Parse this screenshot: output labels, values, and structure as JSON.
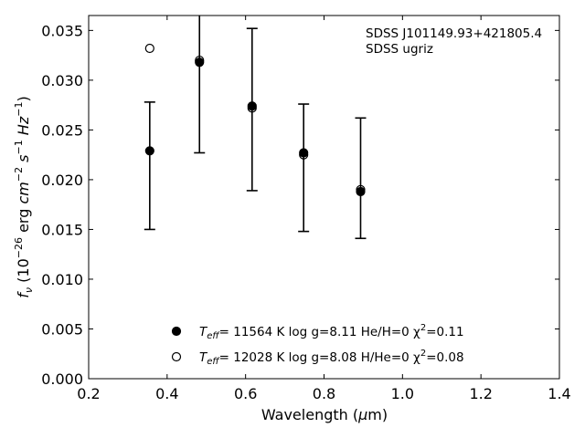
{
  "chart_data": {
    "type": "scatter",
    "xlabel": "Wavelength (μm)",
    "ylabel": "f_ν (10^-26 erg cm^-2 s^-1 Hz^-1)",
    "xlim": [
      0.2,
      1.4
    ],
    "ylim": [
      0.0,
      0.0365
    ],
    "x_ticks": [
      0.2,
      0.4,
      0.6,
      0.8,
      1.0,
      1.2,
      1.4
    ],
    "y_ticks": [
      0.0,
      0.005,
      0.01,
      0.015,
      0.02,
      0.025,
      0.03,
      0.035
    ],
    "x_tick_labels": [
      "0.2",
      "0.4",
      "0.6",
      "0.8",
      "1.0",
      "1.2",
      "1.4"
    ],
    "y_tick_labels": [
      "0.000",
      "0.005",
      "0.010",
      "0.015",
      "0.020",
      "0.025",
      "0.030",
      "0.035"
    ],
    "grid": false,
    "legend_position": "bottom-center",
    "annotation": {
      "object": "SDSS J101149.93+421805.4",
      "filters": "SDSS ugriz"
    },
    "observed": {
      "x": [
        0.3557,
        0.4825,
        0.6166,
        0.748,
        0.8932
      ],
      "y": [
        0.0229,
        0.0319,
        0.0273,
        0.0226,
        0.0188
      ],
      "yerr_upper": [
        0.0278,
        0.037,
        0.0352,
        0.0276,
        0.0262
      ],
      "yerr_lower": [
        0.015,
        0.0227,
        0.0189,
        0.0148,
        0.0141
      ]
    },
    "series": [
      {
        "name": "Teff= 11564 K  log g=8.11  He/H=0  χ2=0.11",
        "marker": "filled",
        "x": [
          0.3557,
          0.4825,
          0.6166,
          0.748,
          0.8932
        ],
        "y": [
          0.0229,
          0.0318,
          0.0274,
          0.0227,
          0.0188
        ]
      },
      {
        "name": "Teff= 12028 K  log g=8.08  H/He=0  χ2=0.08",
        "marker": "open",
        "x": [
          0.3557,
          0.4825,
          0.6166,
          0.748,
          0.8932
        ],
        "y": [
          0.0332,
          0.032,
          0.0272,
          0.0225,
          0.019
        ]
      }
    ]
  },
  "legend": {
    "entry1": {
      "teff_sub": "eff",
      "teff_value": "= 11564 K  log g=8.11  He/H=0  χ",
      "chi_sup": "2",
      "chi_value": "=0.11"
    },
    "entry2": {
      "teff_sub": "eff",
      "teff_value": "= 12028 K  log g=8.08  H/He=0  χ",
      "chi_sup": "2",
      "chi_value": "=0.08"
    }
  },
  "ylabel_parts": {
    "f": "f",
    "nu": "ν",
    "open": " (10",
    "exp1": "−26",
    "erg": " erg ",
    "cm": "cm",
    "exp2": "−2",
    "s": " s",
    "exp3": "−1",
    "hz": " Hz",
    "exp4": "−1",
    "close": ")"
  },
  "xlabel_parts": {
    "text": "Wavelength (",
    "mu": "μ",
    "unit": "m)"
  }
}
